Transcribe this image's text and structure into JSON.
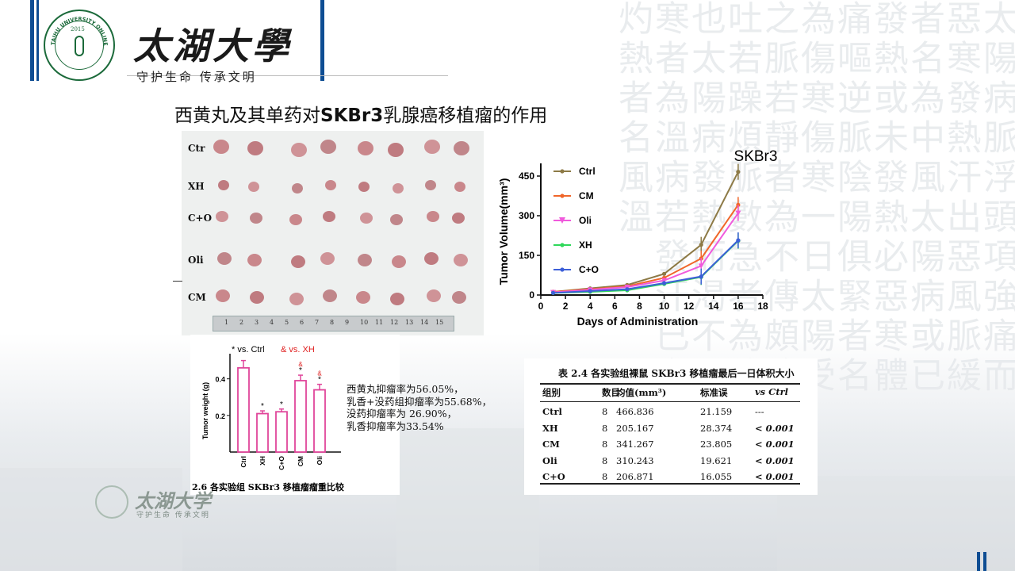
{
  "header": {
    "university": "太湖大學",
    "motto": "守护生命 传承文明",
    "logo_ring_text": "TAIHU UNIVERSITY ONLINE",
    "logo_year": "2015"
  },
  "title": {
    "prefix": "西黄丸及其单药对",
    "bold": "SKBr3",
    "suffix": "乳腺癌移植瘤的作用"
  },
  "photo": {
    "row_labels": [
      "Ctr",
      "XH",
      "C+O",
      "Oli",
      "CM"
    ],
    "ruler_ticks": [
      "1",
      "2",
      "3",
      "4",
      "5",
      "6",
      "7",
      "8",
      "9",
      "10",
      "11",
      "12",
      "13",
      "14",
      "15"
    ]
  },
  "volume_chart": {
    "title": "SKBr3",
    "xlabel": "Days of Administration",
    "ylabel": "Tumor Volume(mm³)",
    "x_ticks": [
      "0",
      "2",
      "4",
      "6",
      "8",
      "10",
      "12",
      "14",
      "16",
      "18"
    ],
    "y_ticks": [
      "0",
      "150",
      "300",
      "450"
    ],
    "colors": {
      "Ctrl": "#8d7a46",
      "CM": "#f0662a",
      "Oli": "#f05adc",
      "XH": "#2fd85a",
      "C+O": "#3c5fd8"
    }
  },
  "chart_data": [
    {
      "type": "line",
      "title": "SKBr3",
      "xlabel": "Days of Administration",
      "ylabel": "Tumor Volume(mm³)",
      "xlim": [
        0,
        18
      ],
      "ylim": [
        0,
        480
      ],
      "x": [
        1,
        4,
        7,
        10,
        13,
        16
      ],
      "legend": "top-left",
      "series": [
        {
          "name": "Ctrl",
          "values": [
            12,
            25,
            38,
            80,
            190,
            466
          ]
        },
        {
          "name": "CM",
          "values": [
            12,
            22,
            33,
            65,
            138,
            341
          ]
        },
        {
          "name": "Oli",
          "values": [
            10,
            20,
            30,
            55,
            110,
            310
          ]
        },
        {
          "name": "XH",
          "values": [
            8,
            12,
            18,
            42,
            68,
            205
          ]
        },
        {
          "name": "C+O",
          "values": [
            8,
            15,
            22,
            45,
            70,
            207
          ]
        }
      ]
    },
    {
      "type": "bar",
      "ylabel": "Tumor weight (g)",
      "categories": [
        "Ctrl",
        "XH",
        "C+O",
        "CM",
        "Oli"
      ],
      "values": [
        0.46,
        0.21,
        0.22,
        0.39,
        0.34
      ],
      "errors": [
        0.04,
        0.015,
        0.015,
        0.03,
        0.03
      ],
      "markers": [
        "",
        "*",
        "*",
        "*&",
        "*&"
      ],
      "y_ticks": [
        "0.2",
        "0.4"
      ],
      "ylim": [
        0,
        0.52
      ],
      "legend_star": "* vs. Ctrl",
      "legend_amp": "& vs. XH",
      "caption": "2.6 各实验组 SKBr3 移植瘤瘤重比较",
      "color": "#e0459a"
    },
    {
      "type": "table",
      "caption": "表 2.4 各实验组裸鼠 SKBr3 移植瘤最后一日体积大小",
      "headers": [
        "组别",
        "数目",
        "均值(mm³)",
        "标准误",
        "vs Ctrl"
      ],
      "rows": [
        [
          "Ctrl",
          "8",
          "466.836",
          "21.159",
          "---"
        ],
        [
          "XH",
          "8",
          "205.167",
          "28.374",
          "< 0.001"
        ],
        [
          "CM",
          "8",
          "341.267",
          "23.805",
          "< 0.001"
        ],
        [
          "Oli",
          "8",
          "310.243",
          "19.621",
          "< 0.001"
        ],
        [
          "C+O",
          "8",
          "206.871",
          "16.055",
          "< 0.001"
        ]
      ]
    }
  ],
  "note_lines": [
    "西黄丸抑瘤率为56.05%，",
    "乳香+没药组抑瘤率为55.68%，",
    "没药抑瘤率为 26.90%，",
    "乳香抑瘤率为33.54%"
  ],
  "footer": {
    "university": "太湖大学",
    "motto": "守护生命 传承文明"
  }
}
